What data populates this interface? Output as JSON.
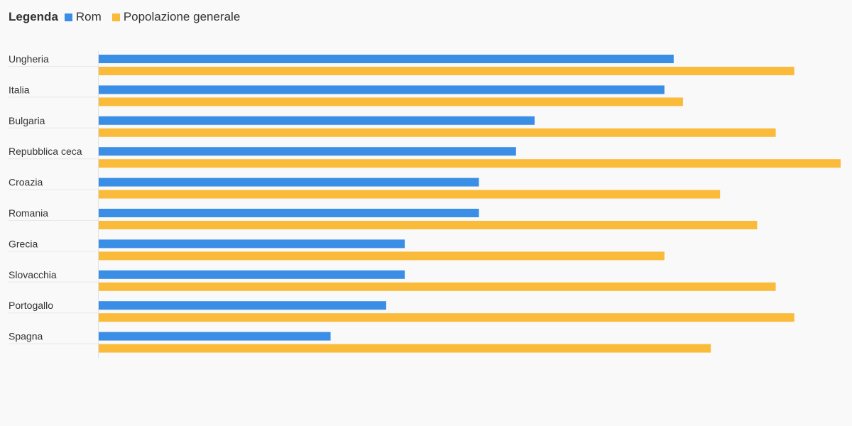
{
  "legend": {
    "title": "Legenda",
    "items": [
      {
        "label": "Rom",
        "color": "#3a8ee6"
      },
      {
        "label": "Popolazione generale",
        "color": "#fbbb3a"
      }
    ]
  },
  "chart_data": {
    "type": "bar",
    "orientation": "horizontal",
    "categories": [
      "Ungheria",
      "Italia",
      "Bulgaria",
      "Repubblica ceca",
      "Croazia",
      "Romania",
      "Grecia",
      "Slovacchia",
      "Portogallo",
      "Spagna"
    ],
    "series": [
      {
        "name": "Rom",
        "color": "#3a8ee6",
        "values": [
          62,
          61,
          47,
          45,
          41,
          41,
          33,
          33,
          31,
          25
        ]
      },
      {
        "name": "Popolazione generale",
        "color": "#fbbb3a",
        "values": [
          75,
          63,
          73,
          80,
          67,
          71,
          61,
          73,
          75,
          66
        ]
      }
    ],
    "xlim": [
      0,
      80
    ],
    "grid": false,
    "legend_position": "top-left"
  }
}
